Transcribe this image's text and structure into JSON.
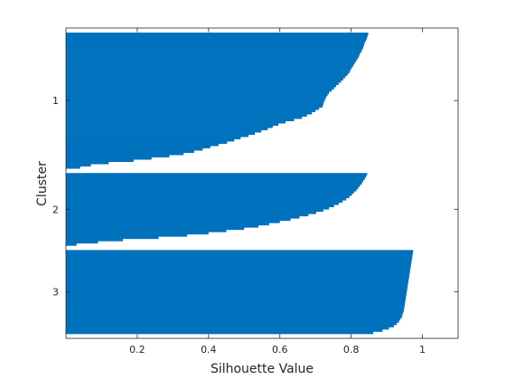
{
  "chart_data": {
    "type": "bar",
    "orientation": "horizontal",
    "title": "",
    "xlabel": "Silhouette Value",
    "ylabel": "Cluster",
    "xlim": [
      0,
      1.1
    ],
    "x_ticks": [
      0.2,
      0.4,
      0.6,
      0.8,
      1
    ],
    "x_tick_labels": [
      "0.2",
      "0.4",
      "0.6",
      "0.8",
      "1"
    ],
    "grid": false,
    "legend": "none",
    "bar_color": "#0072BD",
    "clusters": [
      {
        "label": "1",
        "silhouette_values_sorted_desc": [
          0.848,
          0.846,
          0.844,
          0.841,
          0.838,
          0.836,
          0.834,
          0.831,
          0.828,
          0.824,
          0.822,
          0.818,
          0.814,
          0.81,
          0.806,
          0.802,
          0.798,
          0.795,
          0.79,
          0.784,
          0.778,
          0.772,
          0.765,
          0.758,
          0.752,
          0.745,
          0.738,
          0.734,
          0.73,
          0.727,
          0.724,
          0.722,
          0.72,
          0.71,
          0.7,
          0.69,
          0.676,
          0.662,
          0.64,
          0.616,
          0.596,
          0.58,
          0.566,
          0.548,
          0.53,
          0.512,
          0.49,
          0.472,
          0.452,
          0.428,
          0.405,
          0.384,
          0.36,
          0.33,
          0.29,
          0.24,
          0.19,
          0.12,
          0.07,
          0.04
        ]
      },
      {
        "label": "2",
        "silhouette_values_sorted_desc": [
          0.845,
          0.842,
          0.838,
          0.834,
          0.83,
          0.825,
          0.82,
          0.815,
          0.808,
          0.802,
          0.795,
          0.786,
          0.776,
          0.765,
          0.752,
          0.738,
          0.722,
          0.702,
          0.68,
          0.655,
          0.63,
          0.6,
          0.57,
          0.54,
          0.5,
          0.45,
          0.4,
          0.34,
          0.26,
          0.16,
          0.09,
          0.03
        ]
      },
      {
        "label": "3",
        "silhouette_values_sorted_desc": [
          0.974,
          0.973,
          0.972,
          0.971,
          0.97,
          0.969,
          0.968,
          0.967,
          0.966,
          0.965,
          0.964,
          0.963,
          0.962,
          0.961,
          0.96,
          0.959,
          0.958,
          0.957,
          0.956,
          0.955,
          0.954,
          0.953,
          0.952,
          0.951,
          0.95,
          0.949,
          0.948,
          0.946,
          0.944,
          0.942,
          0.938,
          0.934,
          0.928,
          0.92,
          0.906,
          0.888,
          0.862
        ]
      }
    ]
  }
}
